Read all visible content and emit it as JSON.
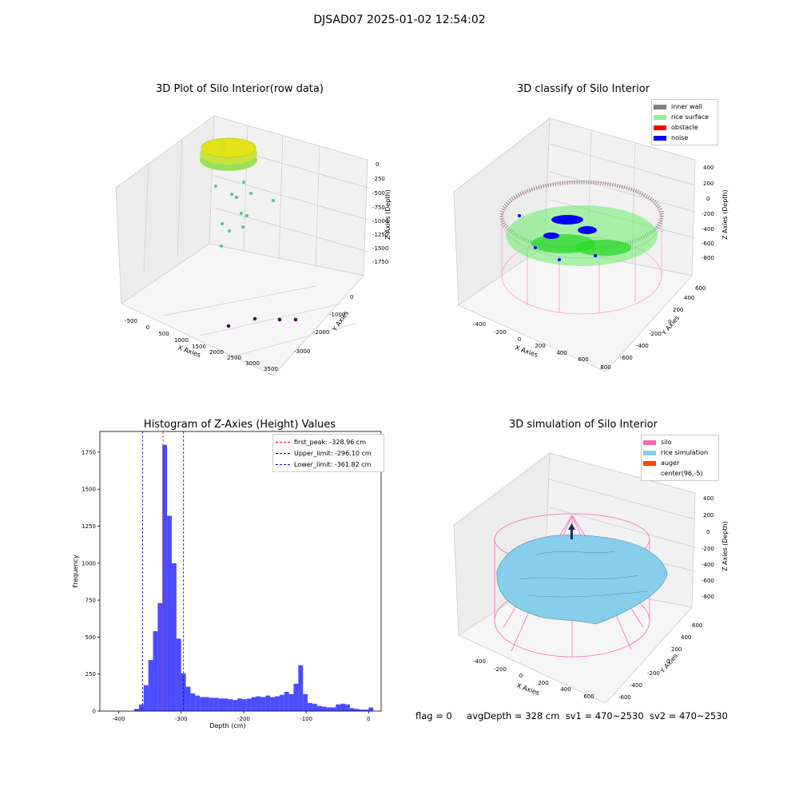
{
  "window_title": "DJSAD07 2025-01-02 12:54:02",
  "footer": {
    "flag": "flag = 0",
    "avg_depth": "avgDepth = 328 cm",
    "sv1": "sv1 = 470~2530",
    "sv2": "sv2 = 470~2530"
  },
  "colors": {
    "inner_wall": "#808080",
    "rice_surface": "#90EE90",
    "obstacle": "#FF0000",
    "noise": "#0000FF",
    "silo": "#FF69B4",
    "rice_simulation": "#87CEEB",
    "auger": "#FF4500",
    "hist_bar": "#0000FF",
    "first_peak": "#FF0000",
    "limits": "#0000CC"
  },
  "chart_data": [
    {
      "type": "scatter",
      "subtype": "3d",
      "title": "3D Plot of Silo Interior(row data)",
      "xlabel": "X Axies",
      "ylabel": "Y Axies",
      "zlabel": "Z Axies (Depth)",
      "x_ticks": [
        "-500",
        "0",
        "500",
        "1000",
        "1500",
        "2000",
        "2500",
        "3000",
        "3500"
      ],
      "y_ticks": [
        "-3000",
        "-2000",
        "-1000",
        "0"
      ],
      "z_ticks": [
        "0",
        "-250",
        "-500",
        "-750",
        "-1000",
        "-1250",
        "-1500",
        "-1750"
      ],
      "grid": true
    },
    {
      "type": "scatter",
      "subtype": "3d",
      "title": "3D classify of Silo Interior",
      "xlabel": "X Axies",
      "ylabel": "Y Axies",
      "zlabel": "Z Axies (Depth)",
      "x_ticks": [
        "-400",
        "-200",
        "0",
        "200",
        "400",
        "600",
        "800"
      ],
      "y_ticks": [
        "-600",
        "-400",
        "-200",
        "0",
        "200",
        "400",
        "600"
      ],
      "z_ticks": [
        "400",
        "200",
        "0",
        "-200",
        "-400",
        "-600",
        "-800"
      ],
      "legend": [
        "inner wall",
        "rice surface",
        "obstacle",
        "noise"
      ],
      "legend_position": "top-right",
      "grid": true
    },
    {
      "type": "bar",
      "subtype": "histogram",
      "title": "Histogram of Z-Axies (Height) Values",
      "xlabel": "Depth (cm)",
      "ylabel": "Frequency",
      "xlim": [
        -430,
        20
      ],
      "ylim": [
        0,
        1890
      ],
      "x_ticks": [
        -400,
        -300,
        -200,
        -100,
        0
      ],
      "y_ticks": [
        0,
        250,
        500,
        750,
        1000,
        1250,
        1500,
        1750
      ],
      "bin_width": 7.5,
      "bins": [
        [
          -375,
          15
        ],
        [
          -367.5,
          45
        ],
        [
          -360,
          175
        ],
        [
          -352.5,
          345
        ],
        [
          -345,
          540
        ],
        [
          -337.5,
          730
        ],
        [
          -330,
          1800
        ],
        [
          -322.5,
          1320
        ],
        [
          -315,
          1000
        ],
        [
          -307.5,
          490
        ],
        [
          -300,
          255
        ],
        [
          -292.5,
          165
        ],
        [
          -285,
          120
        ],
        [
          -277.5,
          105
        ],
        [
          -270,
          95
        ],
        [
          -262.5,
          95
        ],
        [
          -255,
          90
        ],
        [
          -247.5,
          90
        ],
        [
          -240,
          85
        ],
        [
          -232.5,
          85
        ],
        [
          -225,
          80
        ],
        [
          -217.5,
          75
        ],
        [
          -210,
          85
        ],
        [
          -202.5,
          80
        ],
        [
          -195,
          85
        ],
        [
          -187.5,
          95
        ],
        [
          -180,
          100
        ],
        [
          -172.5,
          95
        ],
        [
          -165,
          105
        ],
        [
          -157.5,
          95
        ],
        [
          -150,
          100
        ],
        [
          -142.5,
          110
        ],
        [
          -135,
          130
        ],
        [
          -127.5,
          115
        ],
        [
          -120,
          185
        ],
        [
          -112.5,
          310
        ],
        [
          -105,
          115
        ],
        [
          -97.5,
          55
        ],
        [
          -90,
          50
        ],
        [
          -82.5,
          35
        ],
        [
          -75,
          30
        ],
        [
          -67.5,
          25
        ],
        [
          -60,
          25
        ],
        [
          -52.5,
          45
        ],
        [
          -45,
          50
        ],
        [
          -37.5,
          45
        ],
        [
          -30,
          20
        ],
        [
          -22.5,
          15
        ],
        [
          -15,
          10
        ],
        [
          -7.5,
          10
        ],
        [
          0,
          25
        ]
      ],
      "vlines": [
        {
          "label": "first_peak: -328.96 cm",
          "x": -328.96,
          "color": "#FF0000"
        },
        {
          "label": "Upper_limit: -296.10 cm",
          "x": -296.1,
          "color": "#0000CC"
        },
        {
          "label": "Lower_limit: -361.82 cm",
          "x": -361.82,
          "color": "#0000CC"
        }
      ],
      "legend_position": "top-right"
    },
    {
      "type": "area",
      "subtype": "3d-surface",
      "title": "3D simulation of Silo Interior",
      "xlabel": "X Axies",
      "ylabel": "Y Axies",
      "zlabel": "Z Axies (Depth)",
      "x_ticks": [
        "-400",
        "-200",
        "0",
        "200",
        "400",
        "600"
      ],
      "y_ticks": [
        "-600",
        "-400",
        "-200",
        "0",
        "200",
        "400",
        "600"
      ],
      "z_ticks": [
        "400",
        "200",
        "0",
        "-200",
        "-400",
        "-600",
        "-800"
      ],
      "legend": [
        "silo",
        "rice simulation",
        "auger",
        "center(96,-5)"
      ],
      "legend_position": "top-right",
      "grid": true
    }
  ]
}
